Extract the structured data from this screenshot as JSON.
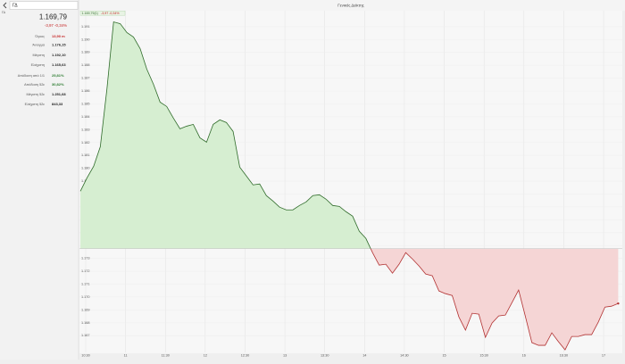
{
  "search": "ΓΔ",
  "panel": {
    "symbol": "ΓΔ",
    "price": "1.169,79",
    "change": "-3,97 -0,34%",
    "rows": [
      {
        "label": "Όγκος",
        "value": "13,90 m",
        "tone": "red"
      },
      {
        "label": "Άνοιγμα",
        "value": "1.176,15",
        "tone": "plain"
      },
      {
        "label": "Μέγιστη",
        "value": "1.192,10",
        "tone": "plain"
      },
      {
        "label": "Ελάχιστη",
        "value": "1.165,63",
        "tone": "plain"
      },
      {
        "label": "Απόδοση από 1/1",
        "value": "25,81%",
        "tone": "green"
      },
      {
        "label": "Απόδοση 52ε",
        "value": "30,82%",
        "tone": "green"
      },
      {
        "label": "Μέγιστη 52ε",
        "value": "1.251,68",
        "tone": "plain"
      },
      {
        "label": "Ελάχιστη 52ε",
        "value": "843,33",
        "tone": "plain"
      }
    ]
  },
  "chart_data": {
    "type": "line",
    "title": "Γενικός Δείκτης",
    "tag_price": "1.169,79(1)",
    "tag_change": "-3,97 -0,34%",
    "reference": 1173.76,
    "x": [
      626,
      631,
      636,
      641,
      646,
      651,
      656,
      661,
      666,
      671,
      676,
      681,
      686,
      691,
      696,
      701,
      706,
      711,
      716,
      721,
      726,
      731,
      736,
      741,
      746,
      751,
      756,
      761,
      766,
      771,
      776,
      781,
      786,
      791,
      796,
      801,
      806,
      811,
      816,
      821,
      826,
      831,
      836,
      841,
      846,
      851,
      856,
      861,
      866,
      871,
      876,
      881,
      886,
      891,
      896,
      901,
      906,
      911,
      916,
      921,
      926,
      931,
      936,
      941,
      946,
      951,
      956,
      961,
      966,
      971,
      976,
      981,
      986,
      991,
      996,
      1001,
      1006,
      1011,
      1016,
      1021,
      1026,
      1031
    ],
    "series": [
      {
        "name": "Γενικός Δείκτης",
        "color": "#2f6b2a",
        "down_color": "#b23232",
        "values": [
          1178.22,
          1179.26,
          1180.16,
          1181.68,
          1186.18,
          1191.37,
          1191.23,
          1190.54,
          1190.19,
          1189.29,
          1187.7,
          1186.53,
          1185.14,
          1184.8,
          1183.9,
          1183.07,
          1183.27,
          1183.41,
          1182.37,
          1182.03,
          1183.41,
          1183.76,
          1183.55,
          1182.86,
          1180.09,
          1179.4,
          1178.71,
          1178.78,
          1177.88,
          1177.46,
          1176.98,
          1176.77,
          1176.77,
          1177.11,
          1177.39,
          1177.88,
          1177.94,
          1177.6,
          1177.11,
          1177.04,
          1176.63,
          1176.28,
          1175.11,
          1174.55,
          1173.45,
          1172.48,
          1172.55,
          1171.85,
          1172.55,
          1173.45,
          1172.96,
          1172.41,
          1171.79,
          1171.65,
          1170.47,
          1170.26,
          1170.12,
          1168.46,
          1167.43,
          1168.74,
          1168.67,
          1166.87,
          1167.98,
          1168.53,
          1168.6,
          1169.57,
          1170.54,
          1168.53,
          1166.46,
          1166.25,
          1166.25,
          1167.22,
          1166.53,
          1165.9,
          1166.94,
          1166.94,
          1167.08,
          1167.08,
          1168.05,
          1169.22,
          1169.29,
          1169.5
        ]
      }
    ],
    "xlim": [
      625.3,
      1034.1
    ],
    "xticks": [
      {
        "value": 630,
        "label": "10:30"
      },
      {
        "value": 660,
        "label": "11"
      },
      {
        "value": 690,
        "label": "11:30"
      },
      {
        "value": 720,
        "label": "12"
      },
      {
        "value": 750,
        "label": "12:30"
      },
      {
        "value": 780,
        "label": "13"
      },
      {
        "value": 810,
        "label": "13:30"
      },
      {
        "value": 840,
        "label": "14"
      },
      {
        "value": 870,
        "label": "14:30"
      },
      {
        "value": 900,
        "label": "15"
      },
      {
        "value": 930,
        "label": "15:30"
      },
      {
        "value": 960,
        "label": "16"
      },
      {
        "value": 990,
        "label": "16:30"
      },
      {
        "value": 1020,
        "label": "17"
      }
    ],
    "ylim": [
      1165.7,
      1192.1
    ],
    "yticks": [
      {
        "value": 1167,
        "label": "1.167"
      },
      {
        "value": 1168,
        "label": "1.168"
      },
      {
        "value": 1169,
        "label": "1.169"
      },
      {
        "value": 1170,
        "label": "1.170"
      },
      {
        "value": 1171,
        "label": "1.171"
      },
      {
        "value": 1172,
        "label": "1.172"
      },
      {
        "value": 1173,
        "label": "1.173"
      },
      {
        "value": 1174,
        "label": "1.174"
      },
      {
        "value": 1175,
        "label": "1.175"
      },
      {
        "value": 1176,
        "label": "1.176"
      },
      {
        "value": 1177,
        "label": "1.177"
      },
      {
        "value": 1178,
        "label": "1.178"
      },
      {
        "value": 1179,
        "label": "1.179"
      },
      {
        "value": 1180,
        "label": "1.180"
      },
      {
        "value": 1181,
        "label": "1.181"
      },
      {
        "value": 1182,
        "label": "1.182"
      },
      {
        "value": 1183,
        "label": "1.183"
      },
      {
        "value": 1184,
        "label": "1.184"
      },
      {
        "value": 1185,
        "label": "1.185"
      },
      {
        "value": 1186,
        "label": "1.186"
      },
      {
        "value": 1187,
        "label": "1.187"
      },
      {
        "value": 1188,
        "label": "1.188"
      },
      {
        "value": 1189,
        "label": "1.189"
      },
      {
        "value": 1190,
        "label": "1.190"
      },
      {
        "value": 1191,
        "label": "1.191"
      }
    ],
    "grid": true
  }
}
